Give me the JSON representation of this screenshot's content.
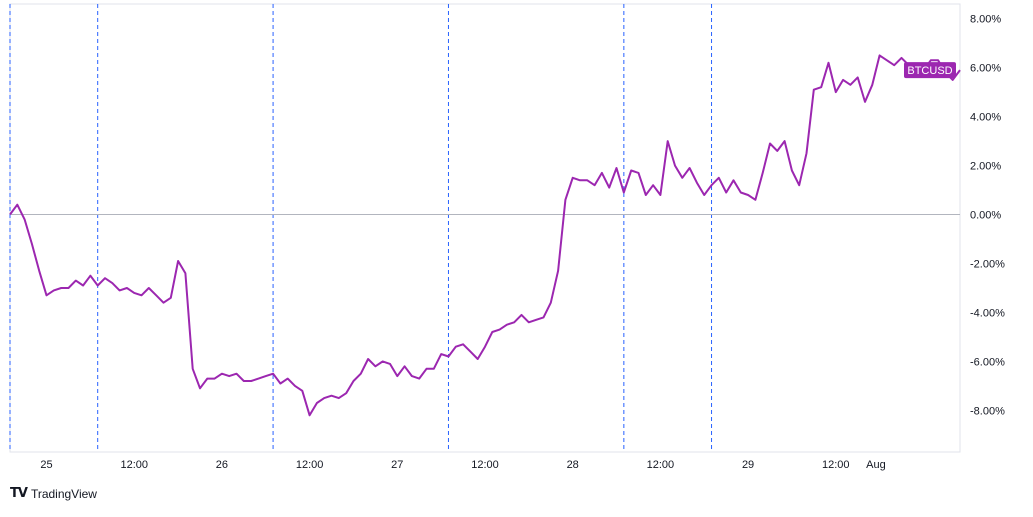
{
  "brand": {
    "logo_icon": "tradingview-logo-icon",
    "name": "TradingView"
  },
  "chart_data": {
    "type": "line",
    "title": "",
    "xlabel": "",
    "ylabel": "",
    "x_unit": "hours since start",
    "x_ticks": [
      {
        "label": "25",
        "x": 5
      },
      {
        "label": "12:00",
        "x": 17
      },
      {
        "label": "26",
        "x": 29
      },
      {
        "label": "12:00",
        "x": 41
      },
      {
        "label": "27",
        "x": 53
      },
      {
        "label": "12:00",
        "x": 65
      },
      {
        "label": "28",
        "x": 77
      },
      {
        "label": "12:00",
        "x": 89
      },
      {
        "label": "29",
        "x": 101
      },
      {
        "label": "12:00",
        "x": 113
      },
      {
        "label": "Aug",
        "x": 118.5
      }
    ],
    "y_ticks": [
      "8.00%",
      "6.00%",
      "4.00%",
      "2.00%",
      "0.00%",
      "-2.00%",
      "-4.00%",
      "-6.00%",
      "-8.00%"
    ],
    "y_tick_values": [
      8,
      6,
      4,
      2,
      0,
      -2,
      -4,
      -6,
      -8
    ],
    "ylim": [
      -9.7,
      8.6
    ],
    "xlim": [
      0,
      130
    ],
    "session_breaks_x": [
      0,
      12,
      36,
      60,
      84,
      96
    ],
    "zero_line": true,
    "series": [
      {
        "name": "BTCUSD",
        "color": "#9C27B0",
        "last_value_label": "BTCUSD",
        "x": [
          0,
          1,
          2,
          3,
          4,
          5,
          6,
          7,
          8,
          9,
          10,
          11,
          12,
          13,
          14,
          15,
          16,
          17,
          18,
          19,
          20,
          21,
          22,
          23,
          24,
          25,
          26,
          27,
          28,
          29,
          30,
          31,
          32,
          33,
          34,
          35,
          36,
          37,
          38,
          39,
          40,
          41,
          42,
          43,
          44,
          45,
          46,
          47,
          48,
          49,
          50,
          51,
          52,
          53,
          54,
          55,
          56,
          57,
          58,
          59,
          60,
          61,
          62,
          63,
          64,
          65,
          66,
          67,
          68,
          69,
          70,
          71,
          72,
          73,
          74,
          75,
          76,
          77,
          78,
          79,
          80,
          81,
          82,
          83,
          84,
          85,
          86,
          87,
          88,
          89,
          90,
          91,
          92,
          93,
          94,
          95,
          96,
          97,
          98,
          99,
          100,
          101,
          102,
          103,
          104,
          105,
          106,
          107,
          108,
          109,
          110,
          111,
          112,
          113,
          114,
          115,
          116,
          117,
          118,
          119,
          120,
          121,
          122,
          123,
          124
        ],
        "y": [
          0.0,
          0.4,
          -0.2,
          -1.2,
          -2.3,
          -3.3,
          -3.1,
          -3.0,
          -3.0,
          -2.7,
          -2.9,
          -2.5,
          -2.9,
          -2.6,
          -2.8,
          -3.1,
          -3.0,
          -3.2,
          -3.3,
          -3.0,
          -3.3,
          -3.6,
          -3.4,
          -1.9,
          -2.4,
          -6.3,
          -7.1,
          -6.7,
          -6.7,
          -6.5,
          -6.6,
          -6.5,
          -6.8,
          -6.8,
          -6.7,
          -6.6,
          -6.5,
          -6.9,
          -6.7,
          -7.0,
          -7.2,
          -8.2,
          -7.7,
          -7.5,
          -7.4,
          -7.5,
          -7.3,
          -6.8,
          -6.5,
          -5.9,
          -6.2,
          -6.0,
          -6.1,
          -6.6,
          -6.2,
          -6.6,
          -6.7,
          -6.3,
          -6.3,
          -5.7,
          -5.8,
          -5.4,
          -5.3,
          -5.6,
          -5.9,
          -5.4,
          -4.8,
          -4.7,
          -4.5,
          -4.4,
          -4.1,
          -4.4,
          -4.3,
          -4.2,
          -3.6,
          -2.3,
          0.6,
          1.5,
          1.4,
          1.4,
          1.2,
          1.7,
          1.1,
          1.9,
          0.9,
          1.8,
          1.7,
          0.8,
          1.2,
          0.8,
          3.0,
          2.0,
          1.5,
          1.9,
          1.3,
          0.8,
          1.2,
          1.5,
          0.9,
          1.4,
          0.9,
          0.8,
          0.6,
          1.7,
          2.9,
          2.6,
          3.0,
          1.8,
          1.2,
          2.5,
          5.1,
          5.2,
          6.2,
          5.0,
          5.5,
          5.3,
          5.6,
          4.6,
          5.3,
          6.5,
          6.3,
          6.1,
          6.4,
          6.1,
          6.0
        ],
        "x_extra": [
          125,
          126,
          127,
          128,
          129,
          130
        ],
        "y_extra": [
          5.9,
          6.3,
          6.3,
          5.8,
          5.5,
          5.9
        ]
      }
    ]
  }
}
